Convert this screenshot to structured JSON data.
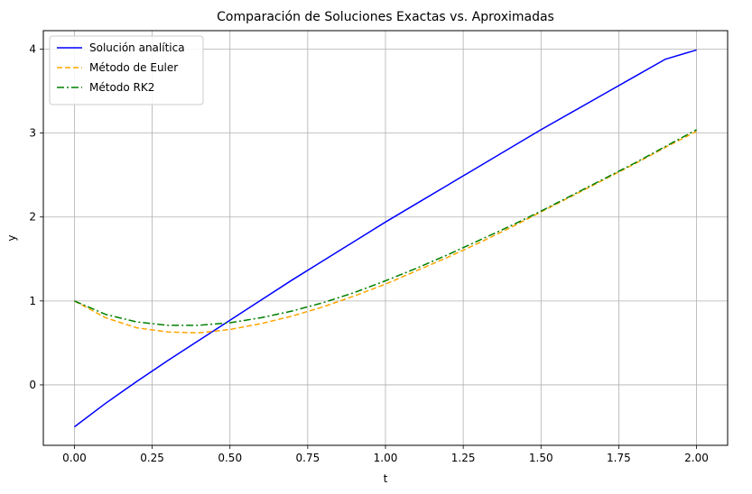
{
  "chart_data": {
    "type": "line",
    "title": "Comparación de Soluciones Exactas vs. Aproximadas",
    "xlabel": "t",
    "ylabel": "y",
    "xlim": [
      -0.1,
      2.1
    ],
    "ylim": [
      -0.72,
      4.22
    ],
    "xticks": [
      0.0,
      0.25,
      0.5,
      0.75,
      1.0,
      1.25,
      1.5,
      1.75,
      2.0
    ],
    "xtick_labels": [
      "0.00",
      "0.25",
      "0.50",
      "0.75",
      "1.00",
      "1.25",
      "1.50",
      "1.75",
      "2.00"
    ],
    "yticks": [
      0,
      1,
      2,
      3,
      4
    ],
    "ytick_labels": [
      "0",
      "1",
      "2",
      "3",
      "4"
    ],
    "grid": true,
    "legend_position": "top-left",
    "x": [
      0.0,
      0.1,
      0.2,
      0.3,
      0.4,
      0.5,
      0.6,
      0.7,
      0.8,
      0.9,
      1.0,
      1.1,
      1.2,
      1.3,
      1.4,
      1.5,
      1.6,
      1.7,
      1.8,
      1.9,
      2.0
    ],
    "series": [
      {
        "name": "Solución analítica",
        "color": "#0000ff",
        "dash": "solid",
        "values": [
          -0.5,
          -0.22,
          0.04,
          0.29,
          0.53,
          0.77,
          1.01,
          1.25,
          1.48,
          1.71,
          1.94,
          2.16,
          2.38,
          2.6,
          2.82,
          3.04,
          3.25,
          3.46,
          3.67,
          3.88,
          3.99
        ]
      },
      {
        "name": "Método de Euler",
        "color": "#ffa500",
        "dash": "dashed",
        "values": [
          1.0,
          0.8,
          0.68,
          0.63,
          0.62,
          0.66,
          0.73,
          0.82,
          0.93,
          1.06,
          1.2,
          1.36,
          1.52,
          1.69,
          1.87,
          2.06,
          2.25,
          2.44,
          2.63,
          2.83,
          3.02
        ]
      },
      {
        "name": "Método RK2",
        "color": "#008000",
        "dash": "dashdot",
        "values": [
          1.0,
          0.84,
          0.75,
          0.71,
          0.71,
          0.74,
          0.8,
          0.88,
          0.98,
          1.1,
          1.24,
          1.39,
          1.55,
          1.72,
          1.89,
          2.07,
          2.26,
          2.45,
          2.64,
          2.84,
          3.04
        ]
      }
    ]
  }
}
